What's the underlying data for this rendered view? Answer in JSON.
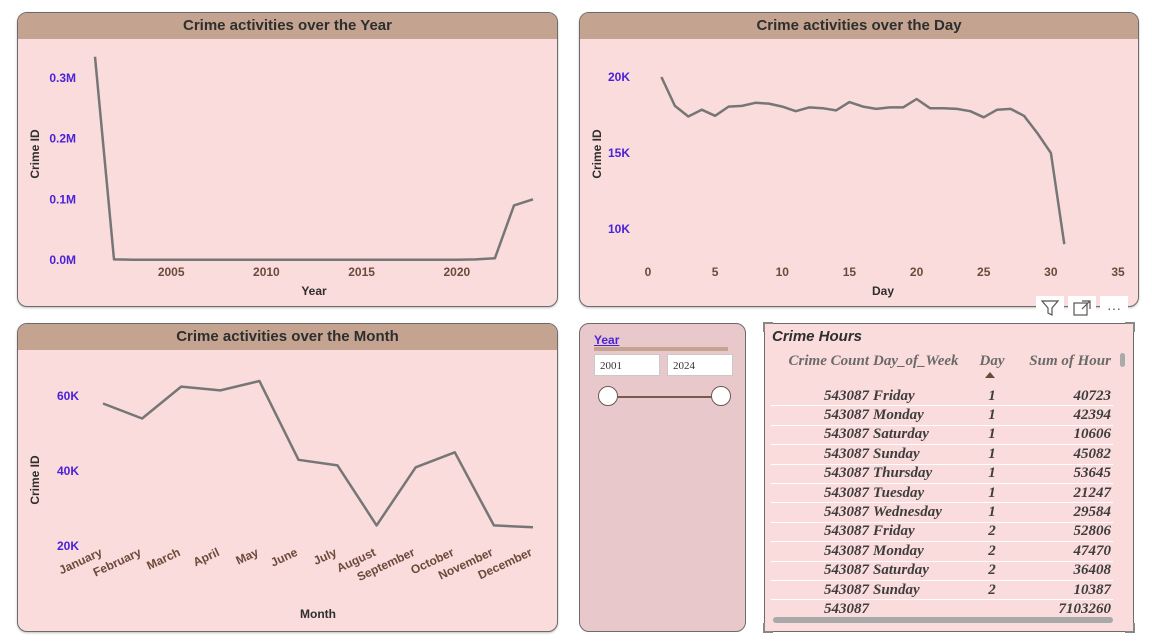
{
  "charts": {
    "year": {
      "title": "Crime activities over the Year",
      "xlabel": "Year",
      "ylabel": "Crime ID",
      "x_ticks": [
        "2005",
        "2010",
        "2015",
        "2020"
      ],
      "y_ticks": [
        "0.0M",
        "0.1M",
        "0.2M",
        "0.3M"
      ]
    },
    "day": {
      "title": "Crime activities over the Day",
      "xlabel": "Day",
      "ylabel": "Crime ID",
      "x_ticks": [
        "0",
        "5",
        "10",
        "15",
        "20",
        "25",
        "30",
        "35"
      ],
      "y_ticks": [
        "10K",
        "15K",
        "20K"
      ]
    },
    "month": {
      "title": "Crime activities over the Month",
      "xlabel": "Month",
      "ylabel": "Crime ID",
      "y_ticks": [
        "20K",
        "40K",
        "60K"
      ]
    }
  },
  "chart_data": [
    {
      "type": "line",
      "title": "Crime activities over the Year",
      "xlabel": "Year",
      "ylabel": "Crime ID",
      "xlim": [
        2001,
        2024
      ],
      "ylim": [
        0,
        330000
      ],
      "x": [
        2001,
        2002,
        2003,
        2004,
        2005,
        2006,
        2007,
        2008,
        2009,
        2010,
        2011,
        2012,
        2013,
        2014,
        2015,
        2016,
        2017,
        2018,
        2019,
        2020,
        2021,
        2022,
        2023,
        2024
      ],
      "values": [
        335000,
        1000,
        500,
        500,
        500,
        500,
        500,
        500,
        500,
        500,
        500,
        500,
        500,
        500,
        500,
        500,
        500,
        500,
        500,
        500,
        1000,
        3000,
        90000,
        100000
      ]
    },
    {
      "type": "line",
      "title": "Crime activities over the Day",
      "xlabel": "Day",
      "ylabel": "Crime ID",
      "xlim": [
        0,
        35
      ],
      "ylim": [
        8000,
        21500
      ],
      "x": [
        1,
        2,
        3,
        4,
        5,
        6,
        7,
        8,
        9,
        10,
        11,
        12,
        13,
        14,
        15,
        16,
        17,
        18,
        19,
        20,
        21,
        22,
        23,
        24,
        25,
        26,
        27,
        28,
        29,
        30,
        31
      ],
      "values": [
        20000,
        18100,
        17400,
        17850,
        17450,
        18050,
        18100,
        18300,
        18250,
        18050,
        17750,
        18000,
        17950,
        17800,
        18350,
        18050,
        17900,
        18000,
        18000,
        18550,
        17950,
        17950,
        17900,
        17750,
        17350,
        17850,
        17900,
        17450,
        16300,
        15000,
        9000
      ]
    },
    {
      "type": "line",
      "title": "Crime activities over the Month",
      "xlabel": "Month",
      "ylabel": "Crime ID",
      "ylim": [
        20000,
        70000
      ],
      "categories": [
        "January",
        "February",
        "March",
        "April",
        "May",
        "June",
        "July",
        "August",
        "September",
        "October",
        "November",
        "December"
      ],
      "values": [
        58000,
        54000,
        62500,
        61500,
        64000,
        43000,
        41500,
        25500,
        41000,
        45000,
        25500,
        25000
      ]
    }
  ],
  "slicer": {
    "title": "Year",
    "min_value": "2001",
    "max_value": "2024"
  },
  "table": {
    "title": "Crime Hours",
    "columns": [
      "Crime Count",
      "Day_of_Week",
      "Day",
      "Sum of Hour"
    ],
    "rows": [
      [
        "543087",
        "Friday",
        "1",
        "40723"
      ],
      [
        "543087",
        "Monday",
        "1",
        "42394"
      ],
      [
        "543087",
        "Saturday",
        "1",
        "10606"
      ],
      [
        "543087",
        "Sunday",
        "1",
        "45082"
      ],
      [
        "543087",
        "Thursday",
        "1",
        "53645"
      ],
      [
        "543087",
        "Tuesday",
        "1",
        "21247"
      ],
      [
        "543087",
        "Wednesday",
        "1",
        "29584"
      ],
      [
        "543087",
        "Friday",
        "2",
        "52806"
      ],
      [
        "543087",
        "Monday",
        "2",
        "47470"
      ],
      [
        "543087",
        "Saturday",
        "2",
        "36408"
      ],
      [
        "543087",
        "Sunday",
        "2",
        "10387"
      ]
    ],
    "total": [
      "543087",
      "",
      "",
      "7103260"
    ]
  },
  "visual_header": {
    "icons": [
      "filter-icon",
      "focus-mode-icon",
      "more-options-icon"
    ],
    "more_glyph": "···"
  },
  "colors": {
    "card_bg": "#fbdcdc",
    "title_bar": "#c4a490",
    "line": "#767676",
    "y_tick": "#4a22d8",
    "x_tick": "#6b4a3a"
  }
}
